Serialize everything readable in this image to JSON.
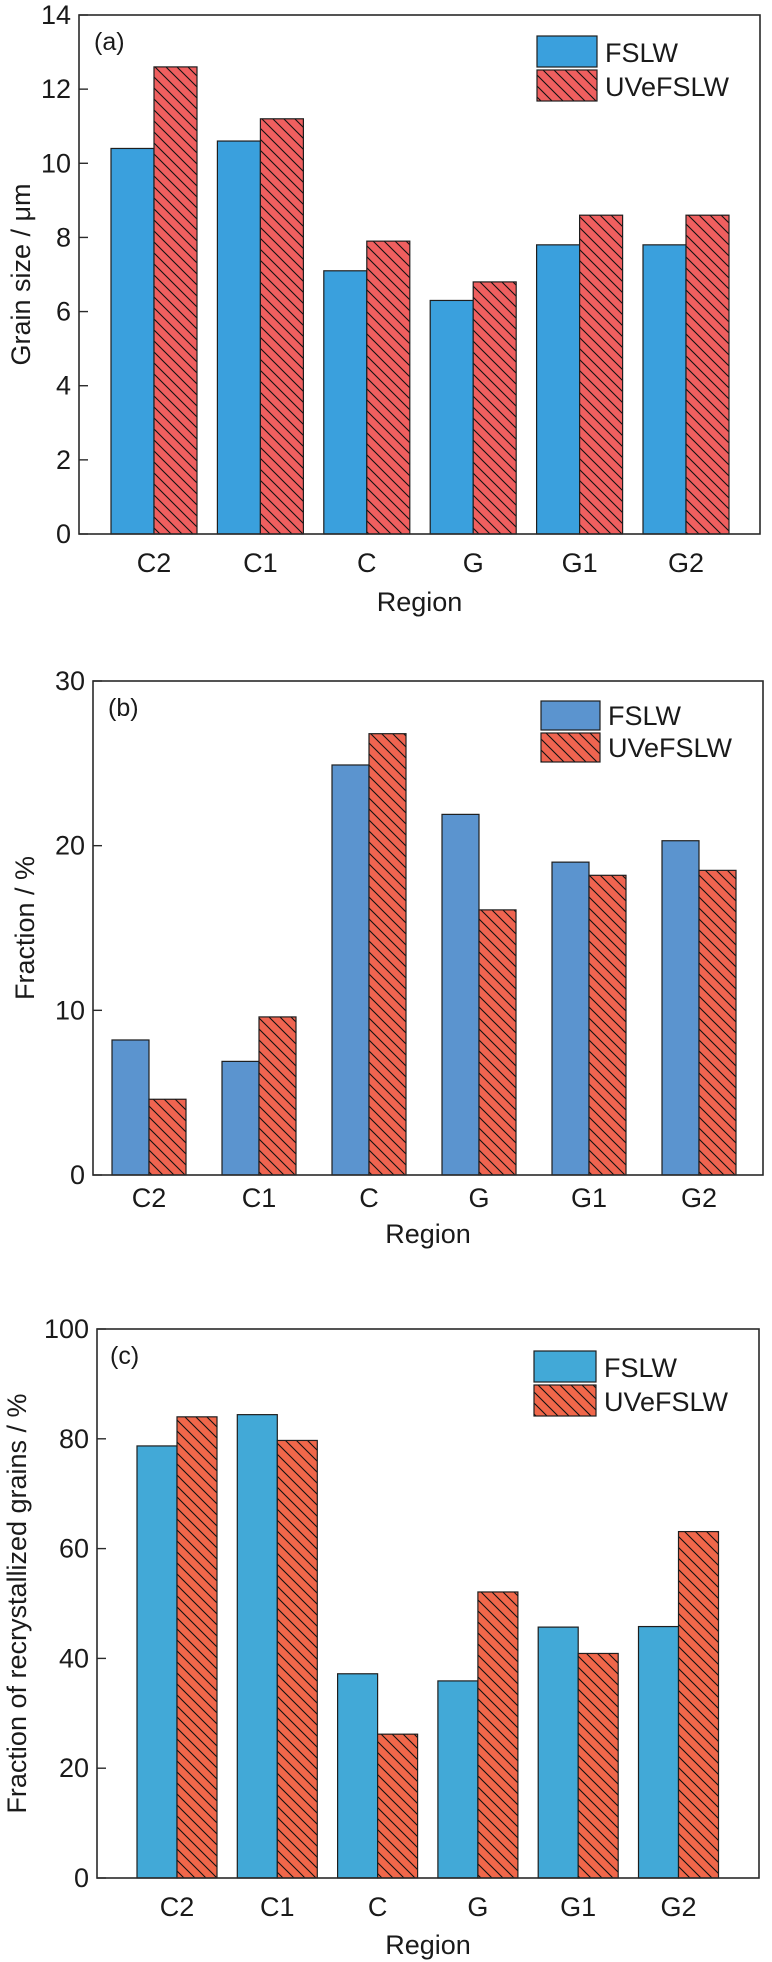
{
  "chart_data": [
    {
      "type": "bar",
      "panel_label": "(a)",
      "title": "",
      "xlabel": "Region",
      "ylabel": "Grain size / μm",
      "categories": [
        "C2",
        "C1",
        "C",
        "G",
        "G1",
        "G2"
      ],
      "ylim": [
        0,
        14
      ],
      "yticks": [
        0,
        2,
        4,
        6,
        8,
        10,
        12,
        14
      ],
      "grid": false,
      "legend": "top-right",
      "series": [
        {
          "name": "FSLW",
          "pattern": "solid",
          "color": "#3aa0dd",
          "values": [
            10.4,
            10.6,
            7.1,
            6.3,
            7.8,
            7.8
          ]
        },
        {
          "name": "UVeFSLW",
          "pattern": "hatched",
          "color": "#ef5f5f",
          "values": [
            12.6,
            11.2,
            7.9,
            6.8,
            8.6,
            8.6
          ]
        }
      ]
    },
    {
      "type": "bar",
      "panel_label": "(b)",
      "title": "",
      "xlabel": "Region",
      "ylabel": "Fraction / %",
      "categories": [
        "C2",
        "C1",
        "C",
        "G",
        "G1",
        "G2"
      ],
      "ylim": [
        0,
        30
      ],
      "yticks": [
        0,
        10,
        20,
        30
      ],
      "grid": false,
      "legend": "top-right",
      "series": [
        {
          "name": "FSLW",
          "pattern": "solid",
          "color": "#5b94cf",
          "values": [
            8.2,
            6.9,
            24.9,
            21.9,
            19.0,
            20.3
          ]
        },
        {
          "name": "UVeFSLW",
          "pattern": "hatched",
          "color": "#ef6450",
          "values": [
            4.6,
            9.6,
            26.8,
            16.1,
            18.2,
            18.5
          ]
        }
      ]
    },
    {
      "type": "bar",
      "panel_label": "(c)",
      "title": "",
      "xlabel": "Region",
      "ylabel": "Fraction of recrystallized grains / %",
      "categories": [
        "C2",
        "C1",
        "C",
        "G",
        "G1",
        "G2"
      ],
      "ylim": [
        0,
        100
      ],
      "yticks": [
        0,
        20,
        40,
        60,
        80,
        100
      ],
      "grid": false,
      "legend": "top-right",
      "series": [
        {
          "name": "FSLW",
          "pattern": "solid",
          "color": "#42a9d7",
          "values": [
            78.7,
            84.4,
            37.2,
            35.9,
            45.7,
            45.8
          ]
        },
        {
          "name": "UVeFSLW",
          "pattern": "hatched",
          "color": "#f0674a",
          "values": [
            84.0,
            79.7,
            26.2,
            52.1,
            40.9,
            63.1
          ]
        }
      ]
    }
  ]
}
